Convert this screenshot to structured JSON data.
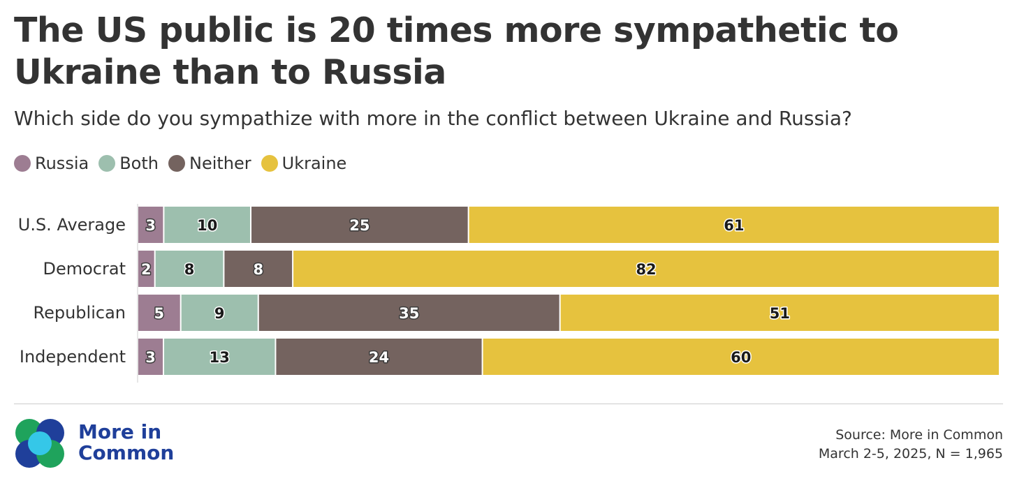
{
  "title": "The US public is 20 times more sympathetic to Ukraine than to Russia",
  "subtitle": "Which side do you sympathize with more in the conflict between Ukraine and Russia?",
  "legend": [
    {
      "label": "Russia",
      "color": "#9d7d92"
    },
    {
      "label": "Both",
      "color": "#9dbfae"
    },
    {
      "label": "Neither",
      "color": "#74635f"
    },
    {
      "label": "Ukraine",
      "color": "#e6c23e"
    }
  ],
  "chart_data": {
    "type": "bar",
    "orientation": "horizontal-stacked-100",
    "categories": [
      "U.S. Average",
      "Democrat",
      "Republican",
      "Independent"
    ],
    "series": [
      {
        "name": "Russia",
        "values": [
          3,
          2,
          5,
          3
        ],
        "color": "#9d7d92",
        "label_color": "#ffffff"
      },
      {
        "name": "Both",
        "values": [
          10,
          8,
          9,
          13
        ],
        "color": "#9dbfae",
        "label_color": "#1a1a1a"
      },
      {
        "name": "Neither",
        "values": [
          25,
          8,
          35,
          24
        ],
        "color": "#74635f",
        "label_color": "#ffffff"
      },
      {
        "name": "Ukraine",
        "values": [
          61,
          82,
          51,
          60
        ],
        "color": "#e6c23e",
        "label_color": "#1a1a1a"
      }
    ],
    "legend_position": "top-left",
    "grid": false
  },
  "brand": {
    "line1": "More in",
    "line2": "Common"
  },
  "source": {
    "line1": "Source: More in Common",
    "line2": "March 2-5, 2025, N = 1,965"
  }
}
